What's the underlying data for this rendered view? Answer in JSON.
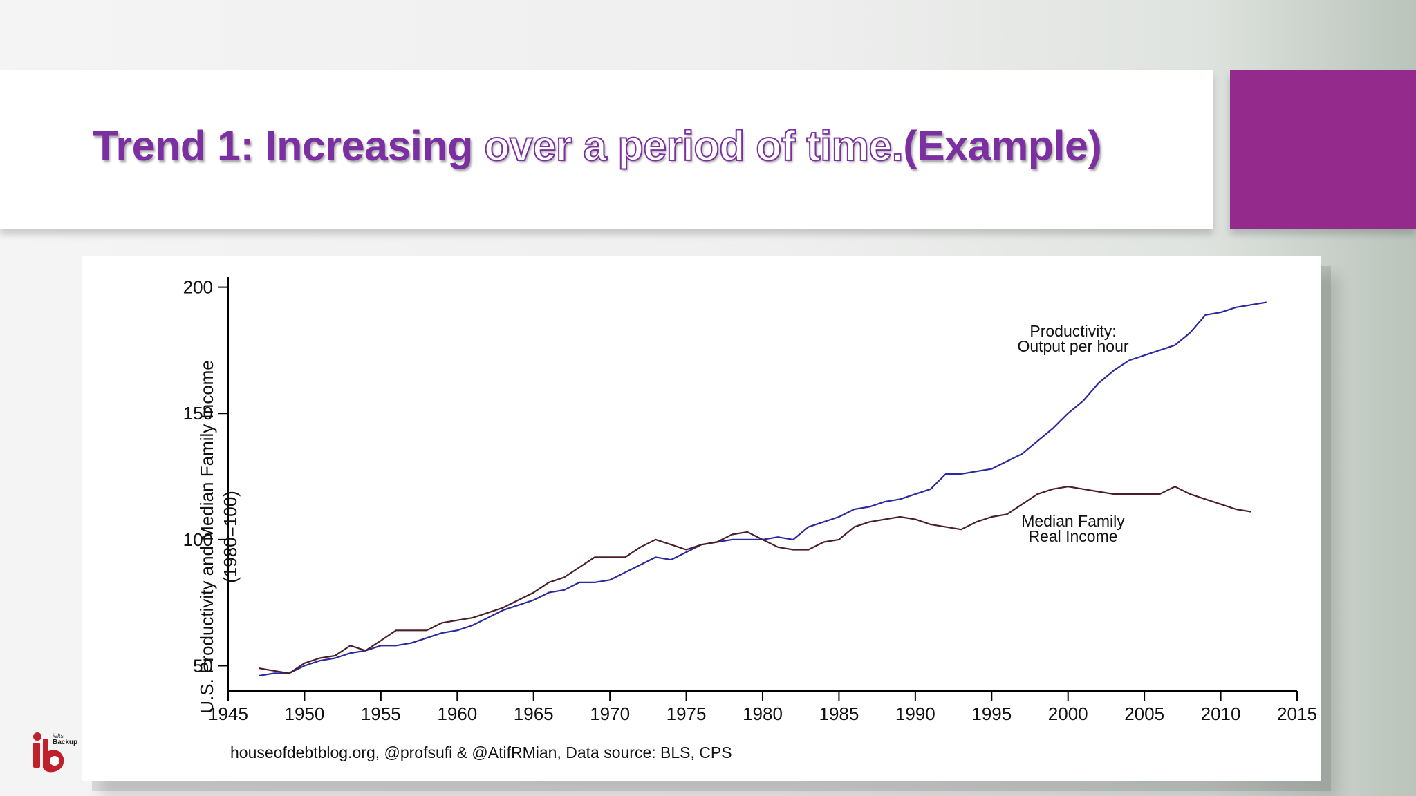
{
  "slide": {
    "title_part1": "Trend 1: Increasing ",
    "title_part2": "over a period of time.",
    "title_part3": "(Example)",
    "accent_color": "#932a8c",
    "title_color": "#7b2fa0"
  },
  "logo": {
    "brand_top": "ielts",
    "brand_bottom": "Backup",
    "icon": "ib-logo-icon"
  },
  "chart_data": {
    "type": "line",
    "title": "",
    "ylabel_line1": "U.S. Productivity and Median Family Income",
    "ylabel_line2": "(1980=100)",
    "xlabel": "",
    "source": "houseofdebtblog.org, @profsufi & @AtifRMian, Data source: BLS, CPS",
    "xlim": [
      1945,
      2015
    ],
    "ylim": [
      40,
      204
    ],
    "xticks": [
      1945,
      1950,
      1955,
      1960,
      1965,
      1970,
      1975,
      1980,
      1985,
      1990,
      1995,
      2000,
      2005,
      2010,
      2015
    ],
    "yticks": [
      50,
      100,
      150,
      200
    ],
    "grid": false,
    "annotations": [
      {
        "series": "productivity",
        "line1": "Productivity:",
        "line2": "Output per hour"
      },
      {
        "series": "income",
        "line1": "Median Family",
        "line2": "Real Income"
      }
    ],
    "series": [
      {
        "key": "productivity",
        "color": "#2a2a9e",
        "x": [
          1947,
          1948,
          1949,
          1950,
          1951,
          1952,
          1953,
          1954,
          1955,
          1956,
          1957,
          1958,
          1959,
          1960,
          1961,
          1962,
          1963,
          1964,
          1965,
          1966,
          1967,
          1968,
          1969,
          1970,
          1971,
          1972,
          1973,
          1974,
          1975,
          1976,
          1977,
          1978,
          1979,
          1980,
          1981,
          1982,
          1983,
          1984,
          1985,
          1986,
          1987,
          1988,
          1989,
          1990,
          1991,
          1992,
          1993,
          1994,
          1995,
          1996,
          1997,
          1998,
          1999,
          2000,
          2001,
          2002,
          2003,
          2004,
          2005,
          2006,
          2007,
          2008,
          2009,
          2010,
          2011,
          2012,
          2013
        ],
        "values": [
          46,
          47,
          47,
          50,
          52,
          53,
          55,
          56,
          58,
          58,
          59,
          61,
          63,
          64,
          66,
          69,
          72,
          74,
          76,
          79,
          80,
          83,
          83,
          84,
          87,
          90,
          93,
          92,
          95,
          98,
          99,
          100,
          100,
          100,
          101,
          100,
          105,
          107,
          109,
          112,
          113,
          115,
          116,
          118,
          120,
          126,
          126,
          127,
          128,
          131,
          134,
          139,
          144,
          150,
          155,
          162,
          167,
          171,
          173,
          175,
          177,
          182,
          189,
          190,
          192,
          193,
          194
        ]
      },
      {
        "key": "income",
        "color": "#4a1f2a",
        "x": [
          1947,
          1948,
          1949,
          1950,
          1951,
          1952,
          1953,
          1954,
          1955,
          1956,
          1957,
          1958,
          1959,
          1960,
          1961,
          1962,
          1963,
          1964,
          1965,
          1966,
          1967,
          1968,
          1969,
          1970,
          1971,
          1972,
          1973,
          1974,
          1975,
          1976,
          1977,
          1978,
          1979,
          1980,
          1981,
          1982,
          1983,
          1984,
          1985,
          1986,
          1987,
          1988,
          1989,
          1990,
          1991,
          1992,
          1993,
          1994,
          1995,
          1996,
          1997,
          1998,
          1999,
          2000,
          2001,
          2002,
          2003,
          2004,
          2005,
          2006,
          2007,
          2008,
          2009,
          2010,
          2011,
          2012
        ],
        "values": [
          49,
          48,
          47,
          51,
          53,
          54,
          58,
          56,
          60,
          64,
          64,
          64,
          67,
          68,
          69,
          71,
          73,
          76,
          79,
          83,
          85,
          89,
          93,
          93,
          93,
          97,
          100,
          98,
          96,
          98,
          99,
          102,
          103,
          100,
          97,
          96,
          96,
          99,
          100,
          105,
          107,
          108,
          109,
          108,
          106,
          105,
          104,
          107,
          109,
          110,
          114,
          118,
          120,
          121,
          120,
          119,
          118,
          118,
          118,
          118,
          121,
          118,
          116,
          114,
          112,
          111
        ]
      }
    ]
  }
}
